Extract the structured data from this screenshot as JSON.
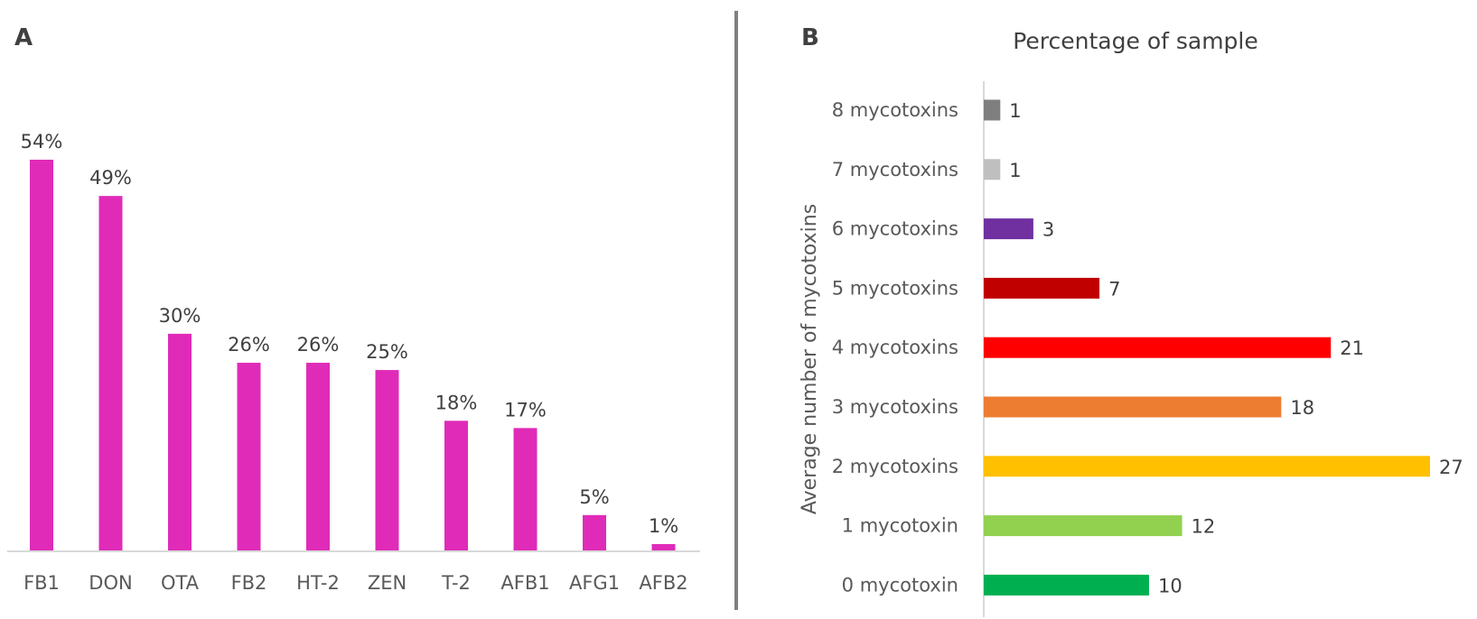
{
  "chart_data": [
    {
      "panel": "A",
      "type": "bar",
      "title": "",
      "xlabel": "",
      "ylabel": "",
      "ylim": [
        0,
        54
      ],
      "categories": [
        "FB1",
        "DON",
        "OTA",
        "FB2",
        "HT-2",
        "ZEN",
        "T-2",
        "AFB1",
        "AFG1",
        "AFB2"
      ],
      "values": [
        54,
        49,
        30,
        26,
        26,
        25,
        18,
        17,
        5,
        1
      ],
      "data_labels": [
        "54%",
        "49%",
        "30%",
        "26%",
        "26%",
        "25%",
        "18%",
        "17%",
        "5%",
        "1%"
      ],
      "bar_color": "#e02bb8",
      "grid": false,
      "legend": "none"
    },
    {
      "panel": "B",
      "type": "bar",
      "orientation": "horizontal",
      "title": "Percentage of sample",
      "xlabel": "",
      "ylabel": "Average number of mycotoxins",
      "xlim": [
        0,
        27
      ],
      "categories": [
        "8 mycotoxins",
        "7 mycotoxins",
        "6 mycotoxins",
        "5 mycotoxins",
        "4 mycotoxins",
        "3 mycotoxins",
        "2 mycotoxins",
        "1 mycotoxin",
        "0 mycotoxin"
      ],
      "values": [
        1,
        1,
        3,
        7,
        21,
        18,
        27,
        12,
        10
      ],
      "data_labels": [
        "1",
        "1",
        "3",
        "7",
        "21",
        "18",
        "27",
        "12",
        "10"
      ],
      "colors": [
        "#7f7f7f",
        "#bfbfbf",
        "#7030a0",
        "#c00000",
        "#ff0000",
        "#ed7d31",
        "#ffc000",
        "#92d050",
        "#00b050"
      ],
      "grid": false,
      "legend": "none"
    }
  ]
}
